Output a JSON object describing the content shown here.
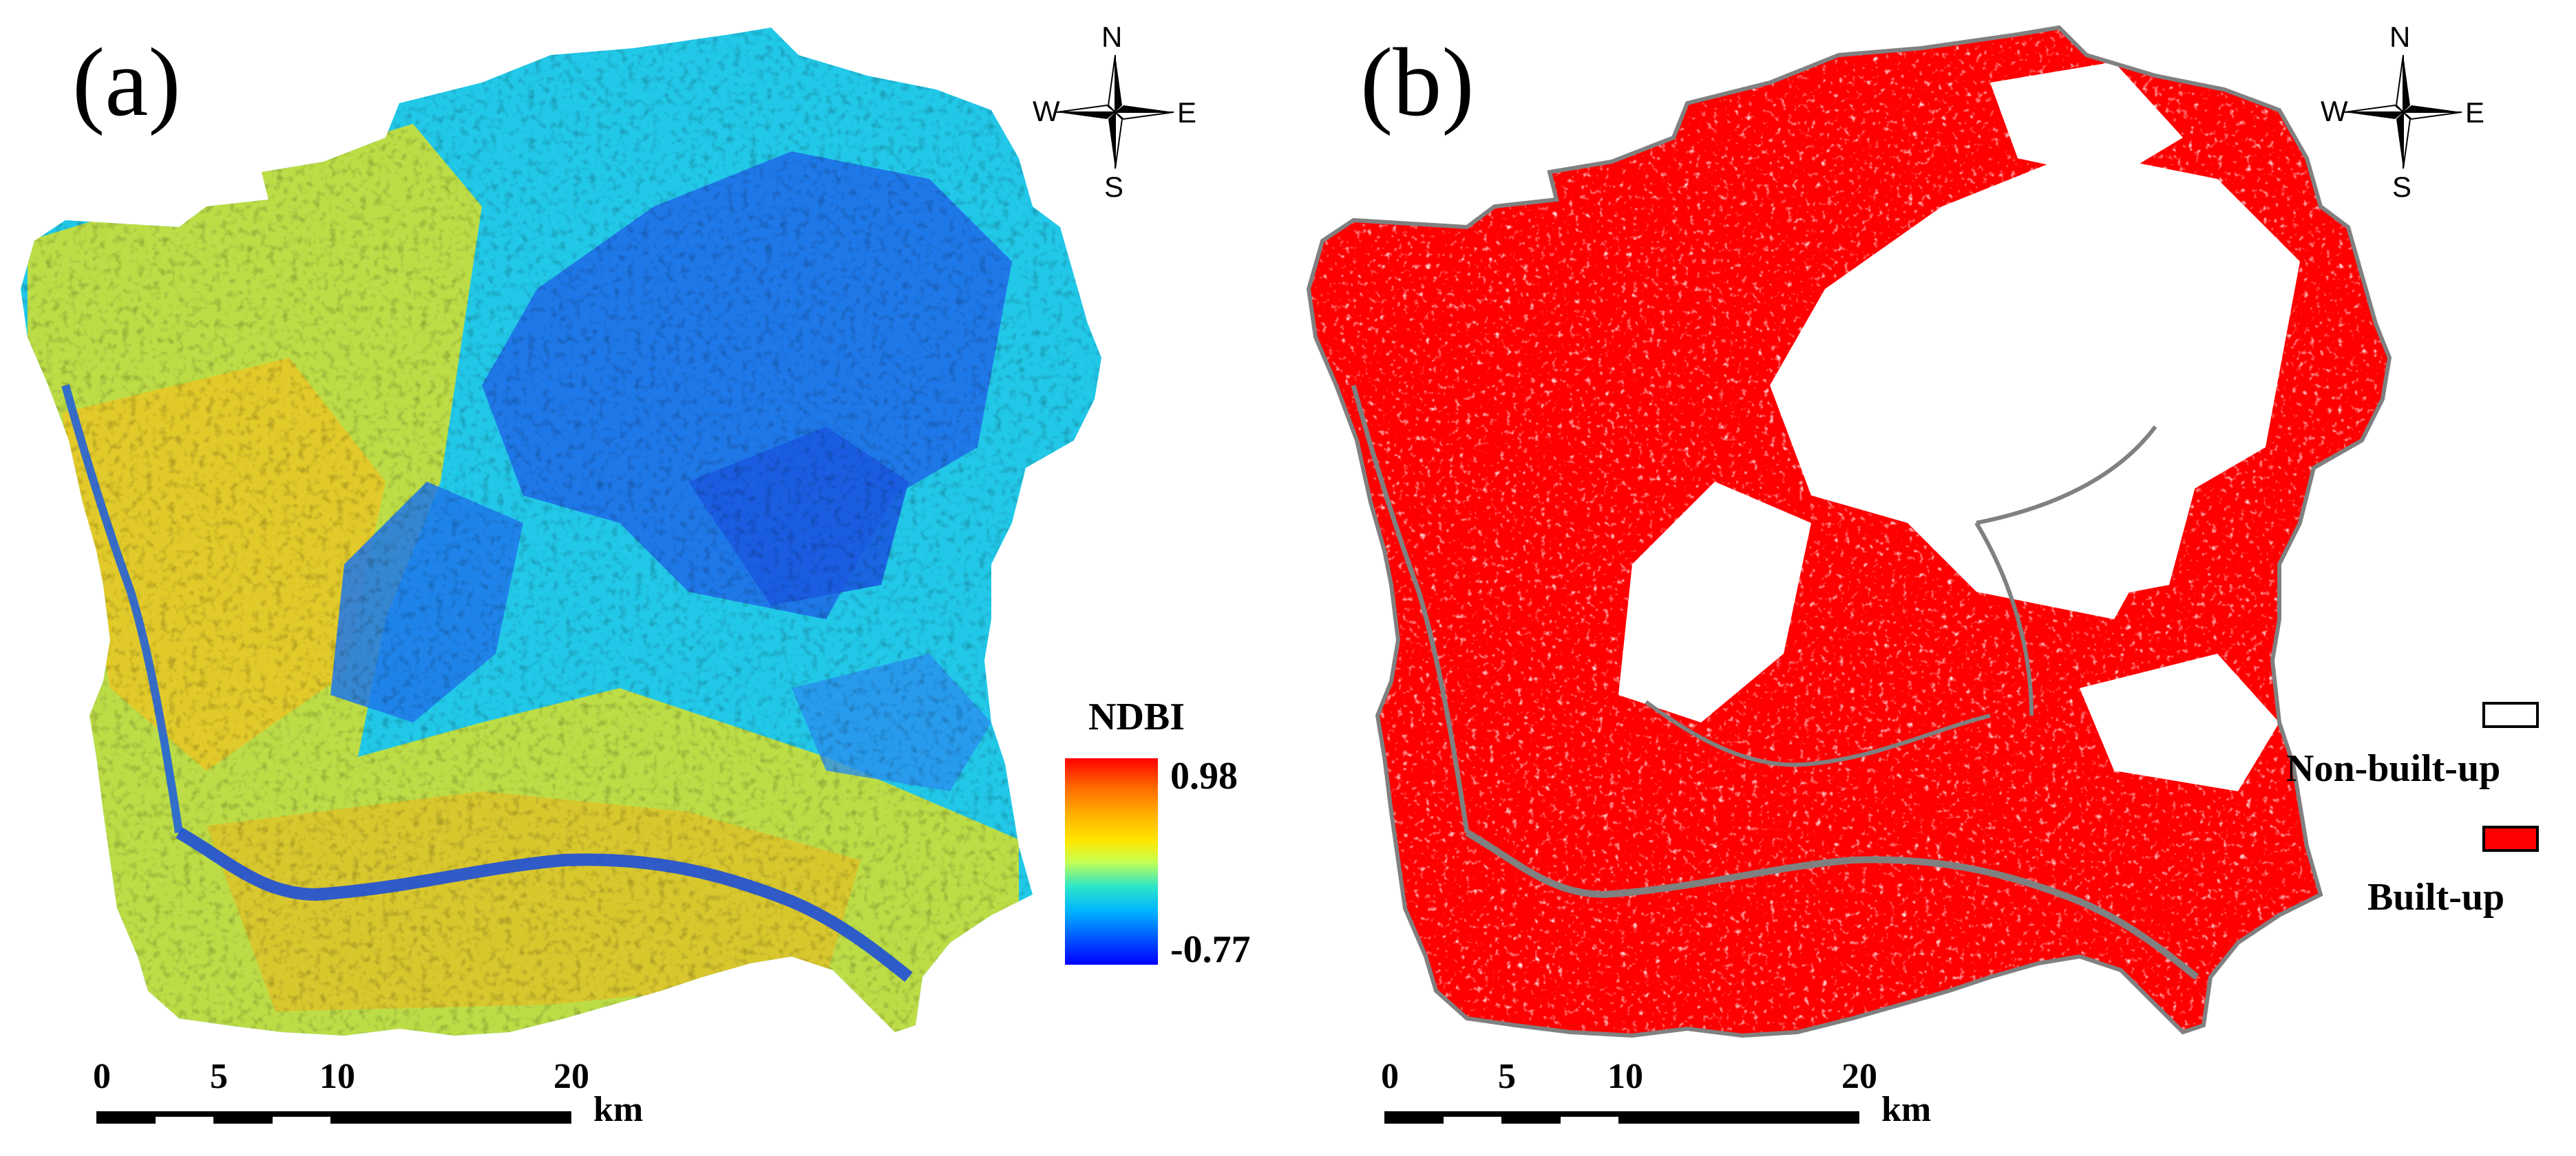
{
  "panels": [
    {
      "label": "(a)",
      "legend": {
        "title": "NDBI",
        "max": "0.98",
        "min": "-0.77"
      }
    },
    {
      "label": "(b)",
      "legend": {
        "non_built_label": "Non-built-up",
        "built_label": "Built-up"
      }
    }
  ],
  "compass": {
    "n": "N",
    "s": "S",
    "w": "W",
    "e": "E"
  },
  "scalebar": {
    "ticks": [
      "0",
      "5",
      "10",
      "20"
    ],
    "unit": "km"
  },
  "colors": {
    "ndbi_high": "#ff0000",
    "ndbi_mid": "#ffe600",
    "ndbi_low": "#0000ff",
    "built_up": "#ff0000",
    "non_built_up": "#ffffff",
    "boundary": "#808080"
  }
}
